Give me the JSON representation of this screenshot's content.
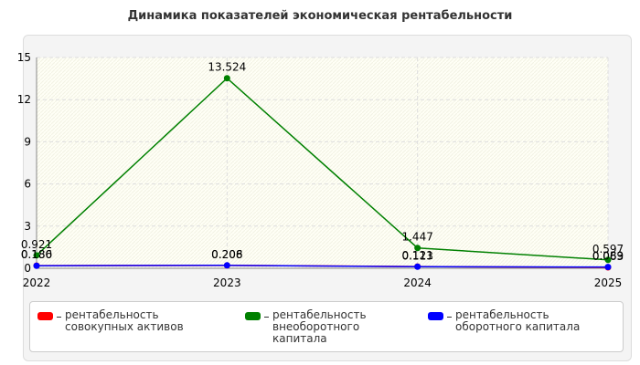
{
  "chart_data": {
    "type": "line",
    "title": "Динамика показателей экономическая рентабельности",
    "x": [
      "2022",
      "2023",
      "2024",
      "2025"
    ],
    "series": [
      {
        "name": "рентабельность совокупных активов",
        "color": "#ff0000",
        "values": [
          0.186,
          0.206,
          0.121,
          0.063
        ],
        "value_labels": [
          "0.186",
          "0.206",
          "0.121",
          "0.063"
        ]
      },
      {
        "name": "рентабельность внеоборотного капитала",
        "color": "#008000",
        "values": [
          0.921,
          13.524,
          1.447,
          0.597
        ],
        "value_labels": [
          "0.921",
          "13.524",
          "1.447",
          "0.597"
        ]
      },
      {
        "name": "рентабельность оборотного капитала",
        "color": "#0000ff",
        "values": [
          0.18,
          0.208,
          0.113,
          0.089
        ],
        "value_labels": [
          "0.180",
          "0.208",
          "0.113",
          "0.089"
        ]
      }
    ],
    "ylim": [
      0,
      15
    ],
    "yticks": [
      0,
      3,
      6,
      9,
      12,
      15
    ],
    "grid": true,
    "legend": "bottom"
  }
}
